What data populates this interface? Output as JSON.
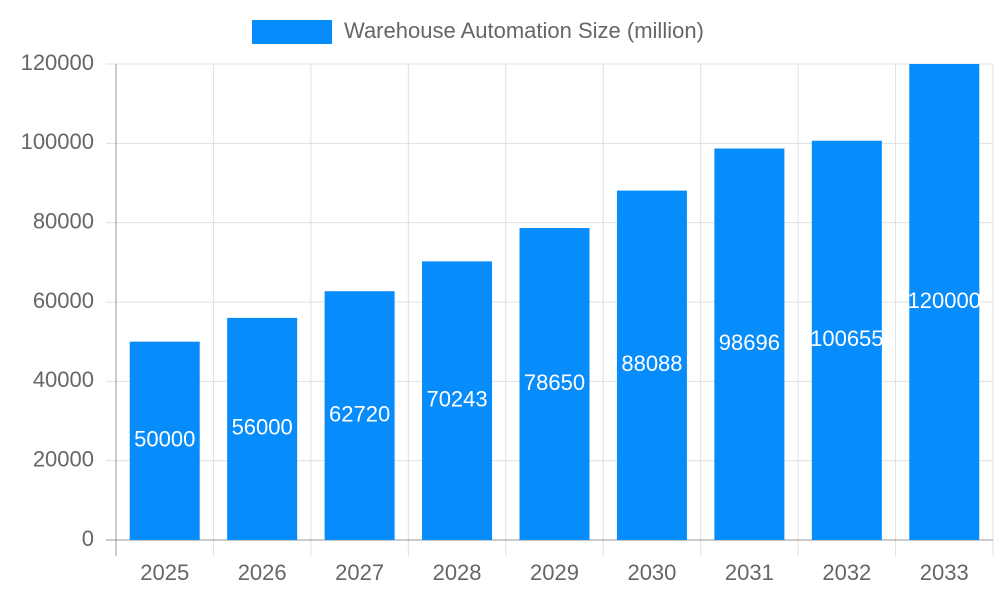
{
  "chart_data": {
    "type": "bar",
    "legend": "Warehouse Automation Size (million)",
    "categories": [
      "2025",
      "2026",
      "2027",
      "2028",
      "2029",
      "2030",
      "2031",
      "2032",
      "2033"
    ],
    "values": [
      50000,
      56000,
      62720,
      70243,
      78650,
      88088,
      98696,
      100655,
      120000
    ],
    "color": "#078cfb",
    "ylim": [
      0,
      120000
    ],
    "yticks": [
      0,
      20000,
      40000,
      60000,
      80000,
      100000,
      120000
    ],
    "grid": true
  }
}
